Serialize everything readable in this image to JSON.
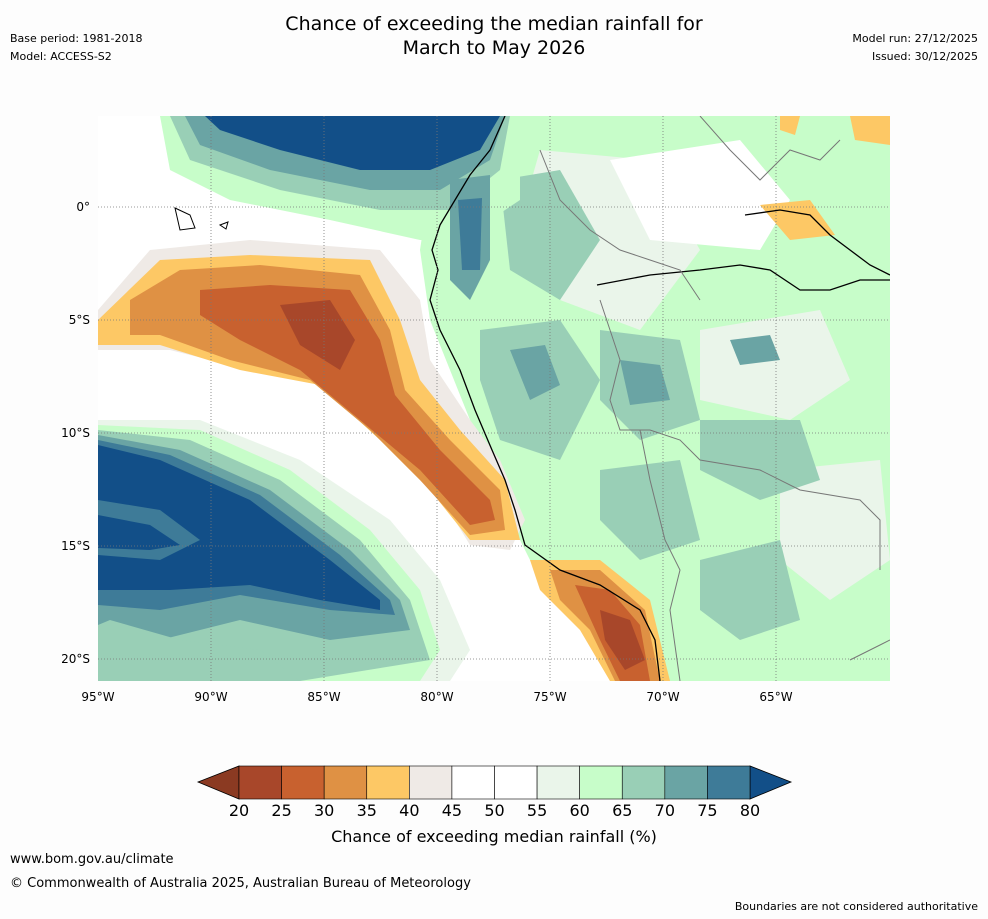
{
  "header": {
    "title_line1": "Chance of exceeding the median rainfall for",
    "title_line2": "March to May 2026",
    "base_period": "Base period: 1981-2018",
    "model": "Model: ACCESS-S2",
    "model_run": "Model run: 27/12/2025",
    "issued": "Issued: 30/12/2025"
  },
  "map": {
    "lat_labels": [
      "0°",
      "5°S",
      "10°S",
      "15°S",
      "20°S"
    ],
    "lon_labels": [
      "95°W",
      "90°W",
      "85°W",
      "80°W",
      "75°W",
      "70°W",
      "65°W"
    ]
  },
  "colorbar": {
    "ticks": [
      "20",
      "25",
      "30",
      "35",
      "40",
      "45",
      "50",
      "55",
      "60",
      "65",
      "70",
      "75",
      "80"
    ],
    "colors": [
      "#a8472a",
      "#c8612f",
      "#df9144",
      "#fdc865",
      "#efeae6",
      "#ffffff",
      "#ffffff",
      "#eaf5ea",
      "#c7fdc9",
      "#99cfb6",
      "#6aa4a4",
      "#3e7b98",
      "#124f88"
    ],
    "low_color": "#8b3a22",
    "high_color": "#124f88",
    "label": "Chance of exceeding median rainfall (%)"
  },
  "footer": {
    "url": "www.bom.gov.au/climate",
    "copyright": "© Commonwealth of Australia 2025, Australian Bureau of Meteorology",
    "note": "Boundaries are not considered authoritative"
  }
}
